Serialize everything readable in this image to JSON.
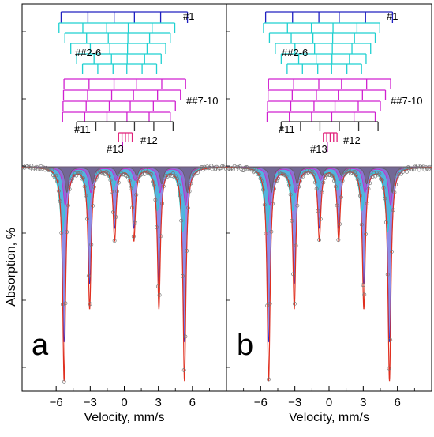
{
  "figure": {
    "ylabel": "Absorption, %"
  },
  "chart_data": [
    {
      "type": "line",
      "panel_label": "a",
      "xlabel": "Velocity, mm/s",
      "ylabel": "Absorption, %",
      "xlim": [
        -9,
        9
      ],
      "x_ticks": [
        -6,
        -3,
        0,
        3,
        6
      ],
      "grid": false,
      "series": [
        {
          "kind": "experimental-points",
          "color": "#777777"
        },
        {
          "kind": "fit-envelope",
          "color": "#e03020"
        },
        {
          "kind": "subspectrum-components",
          "colors": [
            "#2d2fd6",
            "#22d5d5",
            "#d020c8",
            "#606060"
          ]
        }
      ],
      "dip_lines_x": [
        -5.3,
        -3.05,
        -0.85,
        0.85,
        3.05,
        5.3
      ],
      "components": [
        {
          "label": "#1",
          "color": "#2020c0",
          "count": 1,
          "lines_x": [
            -5.3,
            -3.05,
            -0.85,
            0.85,
            3.05,
            5.3
          ]
        },
        {
          "label": "##2-6",
          "color": "#1fd0d0",
          "count": 5
        },
        {
          "label": "##7-10",
          "color": "#d020d0",
          "count": 4
        },
        {
          "label": "#11",
          "color": "#333333",
          "count": 1
        },
        {
          "label": "#12",
          "color": "#e0207a",
          "count": 1
        },
        {
          "label": "#13",
          "color": "#c010c0",
          "count": 1
        }
      ]
    },
    {
      "type": "line",
      "panel_label": "b",
      "xlabel": "Velocity, mm/s",
      "ylabel": "",
      "xlim": [
        -9,
        9
      ],
      "x_ticks": [
        -6,
        -3,
        0,
        3,
        6
      ],
      "grid": false,
      "series": [
        {
          "kind": "experimental-points",
          "color": "#777777"
        },
        {
          "kind": "fit-envelope",
          "color": "#e03020"
        },
        {
          "kind": "subspectrum-components",
          "colors": [
            "#2d2fd6",
            "#22d5d5",
            "#d020c8",
            "#606060"
          ]
        }
      ],
      "dip_lines_x": [
        -5.3,
        -3.05,
        -0.85,
        0.85,
        3.05,
        5.3
      ],
      "components": [
        {
          "label": "#1",
          "color": "#2020c0",
          "count": 1,
          "lines_x": [
            -5.3,
            -3.05,
            -0.85,
            0.85,
            3.05,
            5.3
          ]
        },
        {
          "label": "##2-6",
          "color": "#1fd0d0",
          "count": 5
        },
        {
          "label": "##7-10",
          "color": "#d020d0",
          "count": 4
        },
        {
          "label": "#11",
          "color": "#333333",
          "count": 1
        },
        {
          "label": "#12",
          "color": "#e0207a",
          "count": 1
        },
        {
          "label": "#13",
          "color": "#c010c0",
          "count": 1
        }
      ]
    }
  ]
}
